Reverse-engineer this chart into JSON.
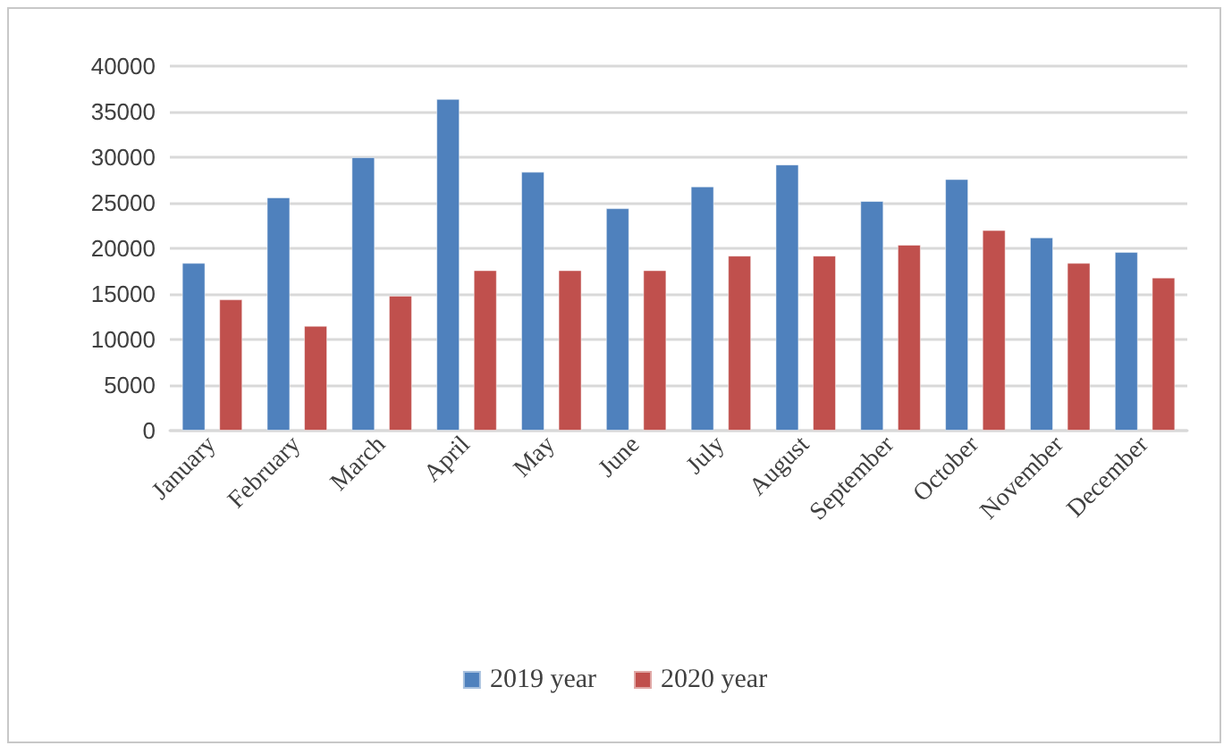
{
  "chart_data": {
    "type": "bar",
    "categories": [
      "January",
      "February",
      "March",
      "April",
      "May",
      "June",
      "July",
      "August",
      "September",
      "October",
      "November",
      "December"
    ],
    "series": [
      {
        "name": "2019 year",
        "color": "#4f81bd",
        "values": [
          18400,
          25600,
          30000,
          36400,
          28400,
          24400,
          26800,
          29200,
          25200,
          27600,
          21200,
          19600
        ]
      },
      {
        "name": "2020 year",
        "color": "#c0504d",
        "values": [
          14400,
          11500,
          14800,
          17600,
          17600,
          17600,
          19200,
          19200,
          20400,
          22000,
          18400,
          16800
        ]
      }
    ],
    "ylim": [
      0,
      40000
    ],
    "yticks": [
      0,
      5000,
      10000,
      15000,
      20000,
      25000,
      30000,
      35000,
      40000
    ],
    "grid": "y",
    "legend": "bottom"
  }
}
